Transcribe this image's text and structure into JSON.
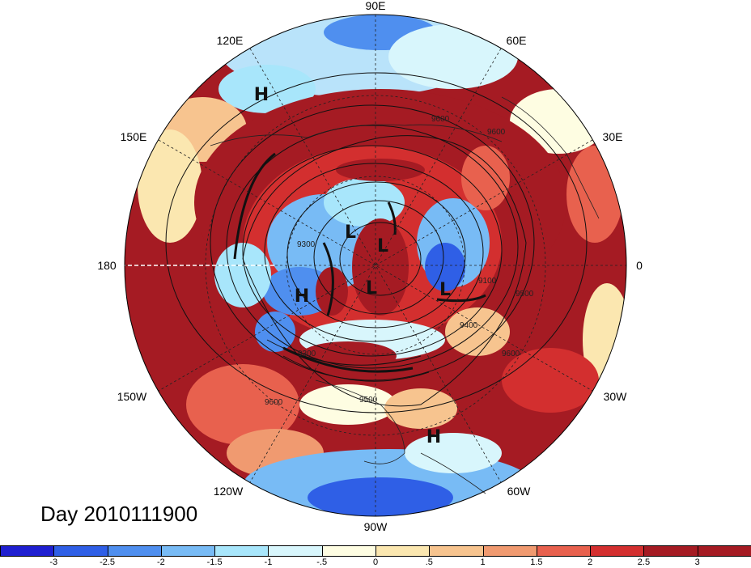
{
  "map": {
    "projection": "north polar stereographic",
    "longitude_labels": {
      "lon_90e": "90E",
      "lon_60e": "60E",
      "lon_120e": "120E",
      "lon_30e": "30E",
      "lon_150e": "150E",
      "lon_0": "0",
      "lon_180": "180",
      "lon_30w": "30W",
      "lon_150w": "150W",
      "lon_60w": "60W",
      "lon_120w": "120W",
      "lon_90w": "90W"
    },
    "pressure_centers": [
      "H",
      "L",
      "L",
      "L",
      "L",
      "H",
      "H"
    ],
    "contour_labels": [
      "9300",
      "9400",
      "9500",
      "9600",
      "9600",
      "9500",
      "9600",
      "9100",
      "9300",
      "9600"
    ]
  },
  "date_label": "Day 2010111900",
  "colorbar": {
    "colors": [
      "#1f1fd0",
      "#2f5fe6",
      "#4f8fef",
      "#78bbf5",
      "#a8e6fb",
      "#d8f6fc",
      "#fefde2",
      "#fbe7b0",
      "#f7c48f",
      "#f09a70",
      "#e8614e",
      "#d32f2f",
      "#a51b23"
    ],
    "ticks": [
      "-3",
      "-2.5",
      "-2",
      "-1.5",
      "-1",
      "-.5",
      "0",
      ".5",
      "1",
      "1.5",
      "2",
      "2.5",
      "3"
    ]
  }
}
